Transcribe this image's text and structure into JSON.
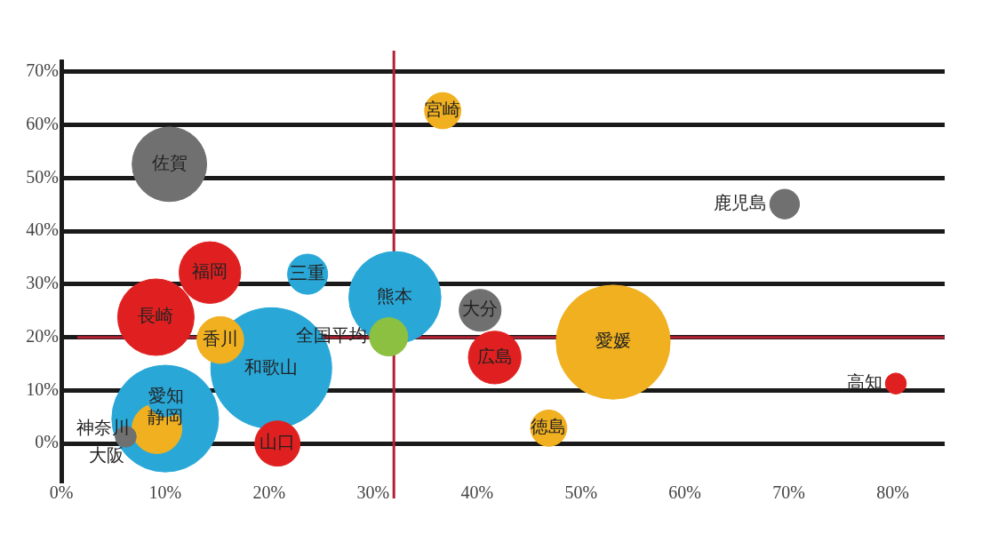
{
  "chart_data": {
    "type": "bubble",
    "xlim": [
      0,
      85
    ],
    "ylim": [
      -7,
      72
    ],
    "xticks": [
      {
        "value": 0,
        "label": "0%"
      },
      {
        "value": 10,
        "label": "10%"
      },
      {
        "value": 20,
        "label": "20%"
      },
      {
        "value": 30,
        "label": "30%"
      },
      {
        "value": 40,
        "label": "40%"
      },
      {
        "value": 50,
        "label": "50%"
      },
      {
        "value": 60,
        "label": "60%"
      },
      {
        "value": 70,
        "label": "70%"
      },
      {
        "value": 80,
        "label": "80%"
      }
    ],
    "yticks": [
      {
        "value": 0,
        "label": "0%"
      },
      {
        "value": 10,
        "label": "10%"
      },
      {
        "value": 20,
        "label": "20%"
      },
      {
        "value": 30,
        "label": "30%"
      },
      {
        "value": 40,
        "label": "40%"
      },
      {
        "value": 50,
        "label": "50%"
      },
      {
        "value": 60,
        "label": "60%"
      },
      {
        "value": 70,
        "label": "70%"
      }
    ],
    "grid": "y",
    "legend": false,
    "ref_lines": [
      {
        "axis": "x",
        "value": 32,
        "color": "#b22234"
      },
      {
        "axis": "y",
        "value": 20,
        "color": "#b22234"
      }
    ],
    "series": [
      {
        "name": "宮崎",
        "color": "#f0b020",
        "x": [
          36.7
        ],
        "values": [
          62.7
        ],
        "sizes": [
          0.09
        ]
      },
      {
        "name": "佐賀",
        "color": "#707070",
        "x": [
          10.4
        ],
        "values": [
          52.6
        ],
        "sizes": [
          0.38
        ]
      },
      {
        "name": "鹿児島",
        "color": "#707070",
        "x": [
          69.6
        ],
        "values": [
          45.1
        ],
        "sizes": [
          0.06
        ]
      },
      {
        "name": "福岡",
        "color": "#e02020",
        "x": [
          14.3
        ],
        "values": [
          32.2
        ],
        "sizes": [
          0.26
        ]
      },
      {
        "name": "三重",
        "color": "#29a8d8",
        "x": [
          23.7
        ],
        "values": [
          31.9
        ],
        "sizes": [
          0.11
        ]
      },
      {
        "name": "熊本",
        "color": "#29a8d8",
        "x": [
          32.1
        ],
        "values": [
          27.5
        ],
        "sizes": [
          0.58
        ]
      },
      {
        "name": "大分",
        "color": "#707070",
        "x": [
          40.3
        ],
        "values": [
          25.1
        ],
        "sizes": [
          0.12
        ]
      },
      {
        "name": "長崎",
        "color": "#e02020",
        "x": [
          9.1
        ],
        "values": [
          23.8
        ],
        "sizes": [
          0.4
        ]
      },
      {
        "name": "香川",
        "color": "#f0b020",
        "x": [
          15.3
        ],
        "values": [
          19.5
        ],
        "sizes": [
          0.15
        ]
      },
      {
        "name": "全国平均",
        "color": "#8cc040",
        "x": [
          31.5
        ],
        "values": [
          20.1
        ],
        "sizes": [
          0.1
        ]
      },
      {
        "name": "愛媛",
        "color": "#f0b020",
        "x": [
          53.1
        ],
        "values": [
          19.1
        ],
        "sizes": [
          0.89
        ]
      },
      {
        "name": "和歌山",
        "color": "#29a8d8",
        "x": [
          20.2
        ],
        "values": [
          14.2
        ],
        "sizes": [
          1
        ]
      },
      {
        "name": "広島",
        "color": "#e02020",
        "x": [
          41.7
        ],
        "values": [
          16.2
        ],
        "sizes": [
          0.19
        ]
      },
      {
        "name": "高知",
        "color": "#e02020",
        "x": [
          80.3
        ],
        "values": [
          11.3
        ],
        "sizes": [
          0.03
        ]
      },
      {
        "name": "愛知",
        "color": "#29a8d8",
        "x": [
          10.1
        ],
        "values": [
          8.7
        ],
        "sizes": [
          0.1
        ]
      },
      {
        "name": "静岡",
        "color": "#29a8d8",
        "x": [
          10
        ],
        "values": [
          4.7
        ],
        "sizes": [
          0.78
        ]
      },
      {
        "name": "神奈川",
        "color": "#f0b020",
        "x": [
          9.2
        ],
        "values": [
          2.8
        ],
        "sizes": [
          0.17
        ]
      },
      {
        "name": "大阪",
        "color": "#707070",
        "x": [
          6.2
        ],
        "values": [
          1.3
        ],
        "sizes": [
          0.03
        ]
      },
      {
        "name": "山口",
        "color": "#e02020",
        "x": [
          20.8
        ],
        "values": [
          0
        ],
        "sizes": [
          0.14
        ]
      },
      {
        "name": "徳島",
        "color": "#f0b020",
        "x": [
          46.9
        ],
        "values": [
          2.9
        ],
        "sizes": [
          0.09
        ]
      }
    ]
  }
}
